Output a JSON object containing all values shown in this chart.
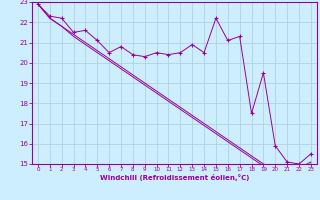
{
  "xlabel": "Windchill (Refroidissement éolien,°C)",
  "bg_color": "#cceeff",
  "grid_color": "#aaccdd",
  "line_color": "#990099",
  "x_data": [
    0,
    1,
    2,
    3,
    4,
    5,
    6,
    7,
    8,
    9,
    10,
    11,
    12,
    13,
    14,
    15,
    16,
    17,
    18,
    19,
    20,
    21,
    22,
    23
  ],
  "line1": [
    22.9,
    22.3,
    22.2,
    21.5,
    21.6,
    21.1,
    20.5,
    20.8,
    20.4,
    20.3,
    20.5,
    20.4,
    20.5,
    20.9,
    20.5,
    22.2,
    21.1,
    21.3,
    17.5,
    19.5,
    15.9,
    15.1,
    15.0,
    15.5
  ],
  "line2": [
    22.9,
    22.2,
    21.8,
    21.4,
    21.0,
    20.6,
    20.2,
    19.8,
    19.4,
    19.0,
    18.6,
    18.2,
    17.8,
    17.4,
    17.0,
    16.6,
    16.2,
    15.8,
    15.4,
    15.0,
    14.8,
    14.6,
    14.8,
    15.1
  ],
  "line3": [
    22.9,
    22.2,
    21.8,
    21.3,
    20.9,
    20.5,
    20.1,
    19.7,
    19.3,
    18.9,
    18.5,
    18.1,
    17.7,
    17.3,
    16.9,
    16.5,
    16.1,
    15.7,
    15.3,
    14.9,
    14.7,
    14.5,
    14.7,
    15.0
  ],
  "ylim": [
    15,
    23
  ],
  "xlim": [
    -0.5,
    23.5
  ],
  "yticks": [
    15,
    16,
    17,
    18,
    19,
    20,
    21,
    22,
    23
  ],
  "xticks": [
    0,
    1,
    2,
    3,
    4,
    5,
    6,
    7,
    8,
    9,
    10,
    11,
    12,
    13,
    14,
    15,
    16,
    17,
    18,
    19,
    20,
    21,
    22,
    23
  ]
}
